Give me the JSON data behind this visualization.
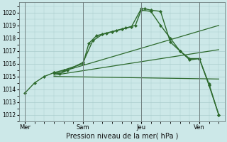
{
  "xlabel": "Pression niveau de la mer( hPa )",
  "bg_color": "#cce8e8",
  "grid_color": "#aacccc",
  "line_color": "#2d6a2d",
  "ylim": [
    1011.5,
    1020.8
  ],
  "yticks": [
    1012,
    1013,
    1014,
    1015,
    1016,
    1017,
    1018,
    1019,
    1020
  ],
  "xtick_labels": [
    "Mer",
    "Sam",
    "Jeu",
    "Ven"
  ],
  "xtick_positions": [
    0,
    30,
    60,
    90
  ],
  "xlim": [
    -3,
    103
  ],
  "series": [
    {
      "x": [
        0,
        5,
        10,
        15,
        18,
        22,
        30,
        35,
        40,
        45,
        50,
        55,
        60,
        62,
        65,
        70,
        75,
        80,
        85,
        90,
        95,
        100
      ],
      "y": [
        1013.7,
        1014.5,
        1015.0,
        1015.3,
        1015.2,
        1015.5,
        1016.1,
        1017.8,
        1018.3,
        1018.5,
        1018.7,
        1018.9,
        1020.3,
        1020.3,
        1020.2,
        1020.1,
        1017.7,
        1017.0,
        1016.3,
        1016.4,
        1014.3,
        1012.0
      ],
      "marker": true,
      "lw": 1.0
    },
    {
      "x": [
        15,
        20,
        30,
        33,
        37,
        42,
        47,
        52,
        57,
        60,
        65,
        70,
        75,
        80,
        85,
        90,
        95,
        100
      ],
      "y": [
        1015.3,
        1015.5,
        1016.0,
        1017.6,
        1018.2,
        1018.4,
        1018.6,
        1018.8,
        1019.0,
        1020.2,
        1020.1,
        1019.0,
        1018.0,
        1017.0,
        1016.4,
        1016.4,
        1014.4,
        1012.0
      ],
      "marker": true,
      "lw": 1.0
    },
    {
      "x": [
        15,
        100
      ],
      "y": [
        1015.2,
        1019.0
      ],
      "marker": false,
      "lw": 0.9
    },
    {
      "x": [
        15,
        100
      ],
      "y": [
        1015.1,
        1017.1
      ],
      "marker": false,
      "lw": 0.9
    },
    {
      "x": [
        15,
        100
      ],
      "y": [
        1015.0,
        1014.8
      ],
      "marker": false,
      "lw": 0.9
    }
  ]
}
